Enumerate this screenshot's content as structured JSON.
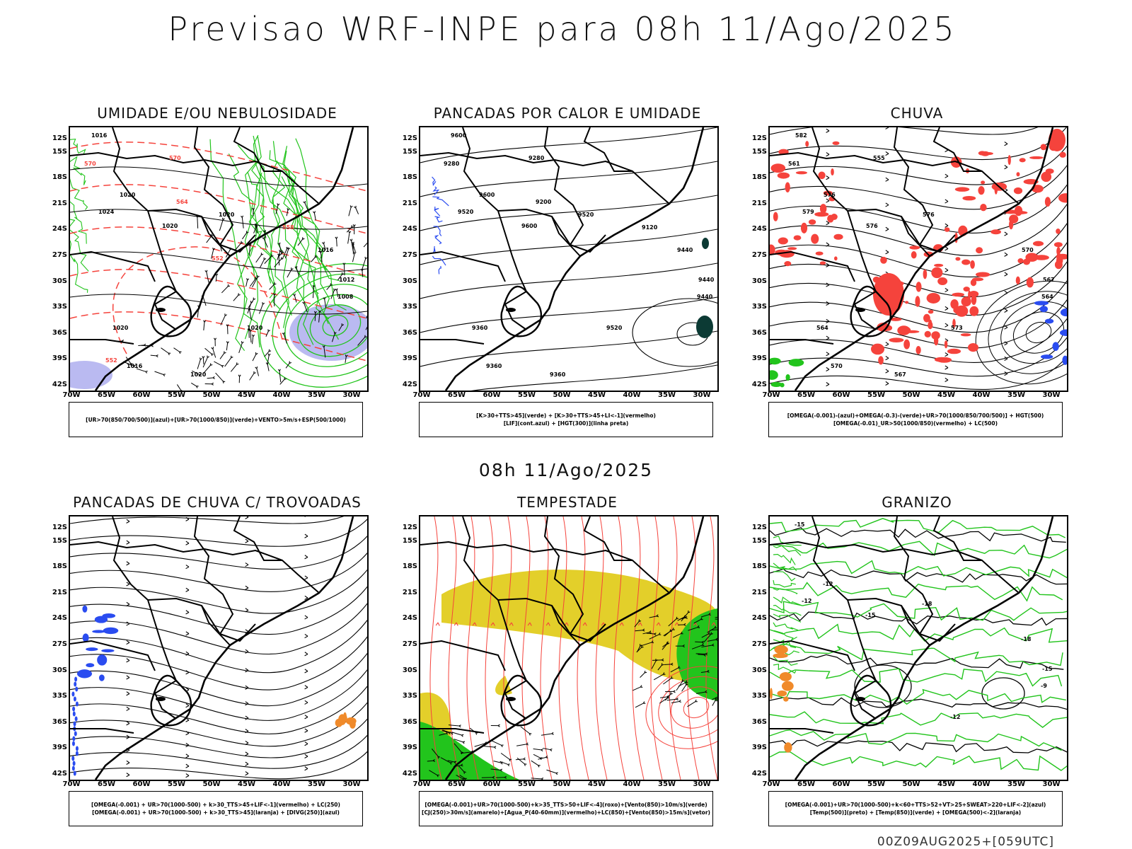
{
  "title": "Previsao WRF-INPE  para 08h 11/Ago/2025",
  "mid_title": "08h 11/Ago/2025",
  "footer": "00Z09AUG2025+[059UTC]",
  "lat_labels": [
    "12S",
    "15S",
    "18S",
    "21S",
    "24S",
    "27S",
    "30S",
    "33S",
    "36S",
    "39S",
    "42S"
  ],
  "lon_labels": [
    "70W",
    "65W",
    "60W",
    "55W",
    "50W",
    "45W",
    "40W",
    "35W",
    "30W"
  ],
  "colors": {
    "green": "#22c41c",
    "red": "#f5433c",
    "blue": "#2a4cf0",
    "yellow": "#e3cf2a",
    "lavender": "#a9a9ee",
    "black": "#000000"
  },
  "panels": [
    {
      "id": "umidade",
      "title": "UMIDADE E/OU NEBULOSIDADE",
      "legend": [
        "[UR>70(850/700/500)](azul)+[UR>70(1000/850)](verde)+VENTO>5m/s+ESP(500/1000)"
      ],
      "labels": [
        "1016",
        "1020",
        "1024",
        "1020",
        "1020",
        "1020",
        "1016",
        "1012",
        "1008",
        "1016",
        "1020",
        "1020",
        "570",
        "570",
        "564",
        "558",
        "552",
        "552"
      ]
    },
    {
      "id": "pancadas-calor",
      "title": "PANCADAS POR CALOR E UMIDADE",
      "legend": [
        "[K>30+TTS>45](verde) + [K>30+TTS>45+LI<-1](vermelho)",
        "[LIF](cont.azul) + [HGT(300)](linha preta)"
      ],
      "labels": [
        "9600",
        "9600",
        "9520",
        "9600",
        "9520",
        "9520",
        "9440",
        "9440",
        "9440",
        "9360",
        "9360",
        "9360",
        "9280",
        "9280",
        "9200",
        "9120"
      ]
    },
    {
      "id": "chuva",
      "title": "CHUVA",
      "legend": [
        "[OMEGA(-0.001)-(azul)+OMEGA(-0.3)-(verde)+UR>70(1000/850/700/500)] + HGT(500)",
        "[OMEGA(-0.01)_UR>50(1000/850)(vermelho) + LC(500)"
      ],
      "labels": [
        "582",
        "576",
        "579",
        "576",
        "576",
        "573",
        "570",
        "567",
        "564",
        "570",
        "567",
        "564",
        "561",
        "555"
      ]
    },
    {
      "id": "trovoadas",
      "title": "PANCADAS DE CHUVA C/ TROVOADAS",
      "legend": [
        "[OMEGA(-0.001) + UR>70(1000-500) + k>30_TTS>45+LIF<-1](vermelho) + LC(250)",
        "[OMEGA(-0.001) + UR>70(1000-500) + k>30_TTS>45](laranja) + [DIVG(250)](azul)"
      ],
      "labels": []
    },
    {
      "id": "tempestade",
      "title": "TEMPESTADE",
      "legend": [
        "[OMEGA(-0.001)+UR>70(1000-500)+k>35_TTS>50+LIF<-4](roxo)+[Vento(850)>10m/s](verde)",
        "[CJ(250)>30m/s](amarelo)+[Agua_P(40-60mm)](vermelho)+LC(850)+[Vento(850)>15m/s](vetor)"
      ],
      "labels": []
    },
    {
      "id": "granizo",
      "title": "GRANIZO",
      "legend": [
        "[OMEGA(-0.001)+UR>70(1000-500)+k<60+TTS>52+VT>25+SWEAT>220+LIF<-2](azul)",
        "[Temp(500)](preto) + [Temp(850)](verde) + [OMEGA(500)<-2](laranja)"
      ],
      "labels": [
        "-15",
        "-12",
        "-12",
        "-15",
        "-18",
        "-12",
        "-18",
        "-15",
        "-9"
      ]
    }
  ]
}
